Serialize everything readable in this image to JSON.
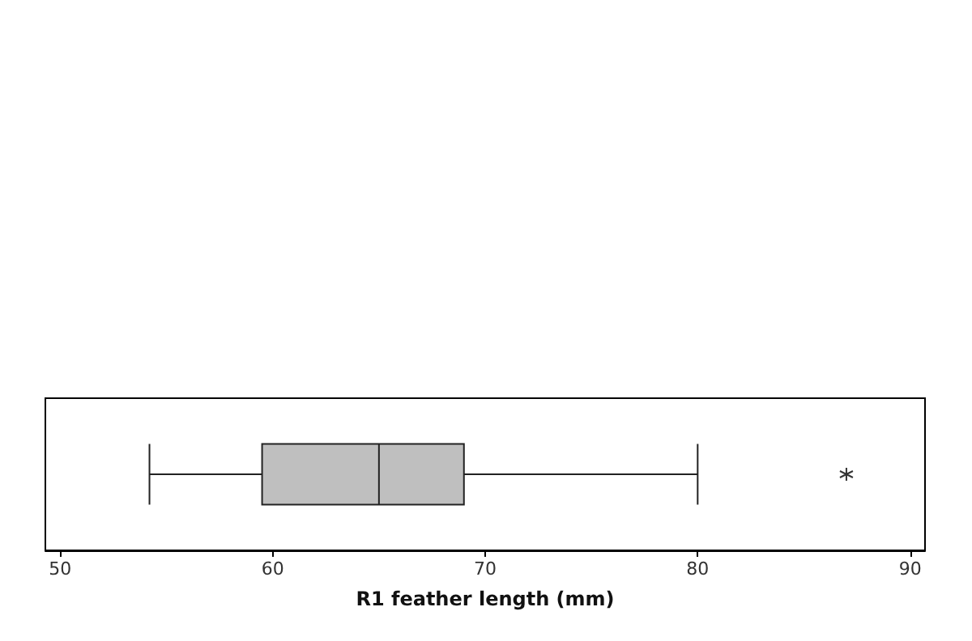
{
  "chart_data": {
    "type": "box",
    "orientation": "horizontal",
    "xlabel": "R1 feather length (mm)",
    "categories": [
      null
    ],
    "boxes": [
      {
        "low": 54.2,
        "q1": 59.5,
        "median": 65,
        "q3": 69,
        "high": 80,
        "outliers": [
          87
        ]
      }
    ],
    "color": "#bfbfbf",
    "xlim": [
      49.3,
      90.7
    ],
    "xticks": [
      50,
      60,
      70,
      80,
      90
    ]
  }
}
